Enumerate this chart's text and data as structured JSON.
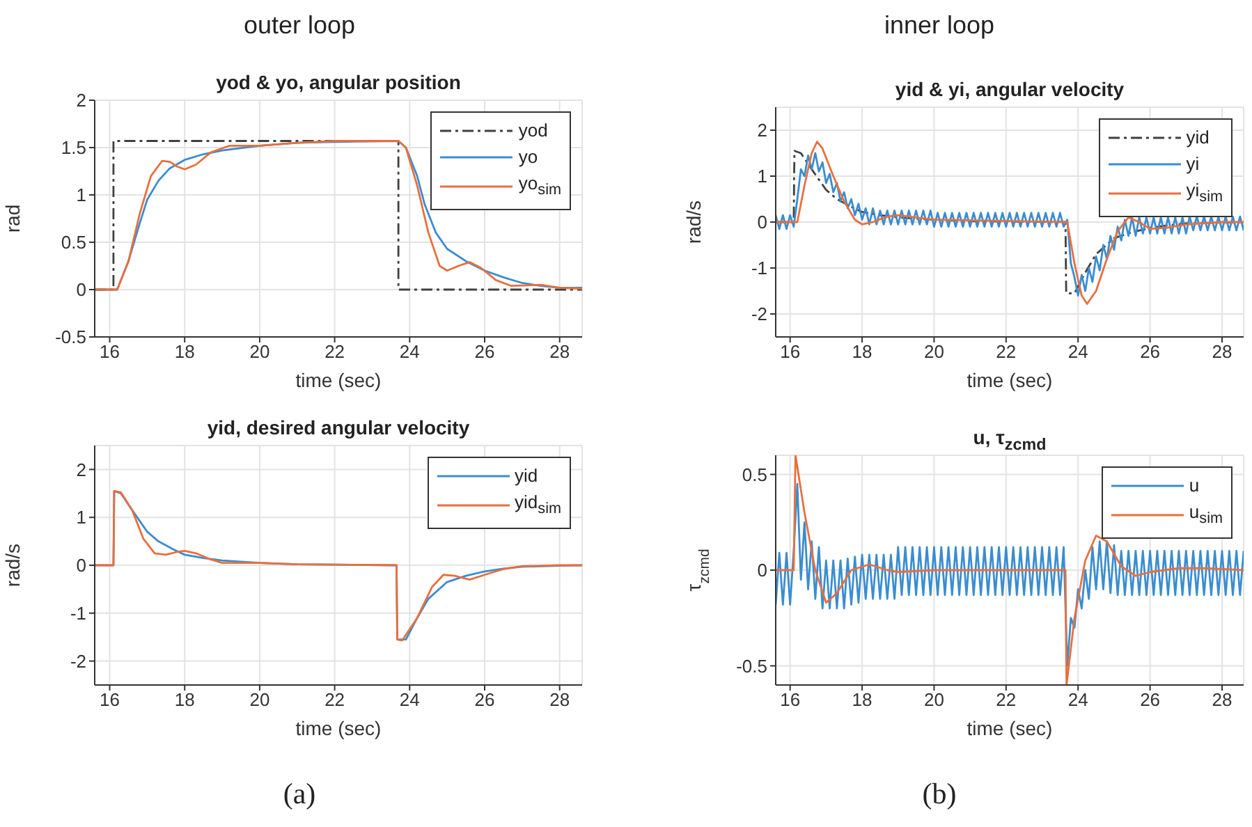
{
  "chart_data": [
    {
      "type": "line",
      "title": "yod & yo, angular position",
      "xlabel": "time (sec)",
      "ylabel": "rad",
      "annotations": [
        "outer loop"
      ],
      "xlim": [
        15.6,
        28.6
      ],
      "xticks": [
        16,
        18,
        20,
        22,
        24,
        26,
        28
      ],
      "ylim": [
        -0.5,
        2
      ],
      "yticks": [
        -0.5,
        0,
        0.5,
        1,
        1.5,
        2
      ],
      "grid": true,
      "legend": "top right",
      "series": [
        {
          "name": "yod",
          "color": "#404040",
          "line_style": "dashed",
          "x": [
            15.6,
            16.1,
            16.1,
            23.7,
            23.7,
            28.6
          ],
          "values": [
            0,
            0,
            1.57,
            1.57,
            0,
            0
          ]
        },
        {
          "name": "yo",
          "color": "#3a8dd0",
          "x": [
            15.6,
            16.2,
            16.5,
            16.8,
            17.0,
            17.3,
            17.6,
            18,
            18.5,
            19,
            20,
            21,
            22,
            23.7,
            23.9,
            24.2,
            24.4,
            24.7,
            25,
            25.5,
            26,
            26.5,
            27,
            27.5,
            28,
            28.6
          ],
          "values": [
            0,
            0,
            0.3,
            0.7,
            0.95,
            1.15,
            1.28,
            1.37,
            1.43,
            1.47,
            1.52,
            1.55,
            1.56,
            1.57,
            1.5,
            1.2,
            0.9,
            0.6,
            0.43,
            0.3,
            0.2,
            0.13,
            0.07,
            0.04,
            0.02,
            0.02
          ]
        },
        {
          "name": "yo$_{sim}$",
          "color": "#e86f3e",
          "x": [
            15.6,
            16.2,
            16.5,
            16.8,
            17.1,
            17.4,
            17.6,
            17.8,
            18,
            18.3,
            18.7,
            19.2,
            20,
            21,
            22,
            23.7,
            23.9,
            24.2,
            24.5,
            24.8,
            25,
            25.3,
            25.6,
            25.9,
            26.3,
            26.7,
            27.5,
            28,
            28.6
          ],
          "values": [
            0,
            0,
            0.3,
            0.8,
            1.2,
            1.36,
            1.35,
            1.3,
            1.27,
            1.32,
            1.45,
            1.52,
            1.52,
            1.55,
            1.57,
            1.57,
            1.5,
            1.1,
            0.6,
            0.25,
            0.2,
            0.25,
            0.29,
            0.23,
            0.1,
            0.04,
            0.05,
            0.02,
            0.01
          ]
        }
      ]
    },
    {
      "type": "line",
      "title": "yid & yi, angular velocity",
      "xlabel": "time (sec)",
      "ylabel": "rad/s",
      "annotations": [
        "inner loop"
      ],
      "xlim": [
        15.6,
        28.6
      ],
      "xticks": [
        16,
        18,
        20,
        22,
        24,
        26,
        28
      ],
      "ylim": [
        -2.5,
        2.5
      ],
      "yticks": [
        -2,
        -1,
        0,
        1,
        2
      ],
      "grid": true,
      "legend": "top right",
      "series": [
        {
          "name": "yid",
          "color": "#404040",
          "line_style": "dashed",
          "x": [
            15.6,
            16.1,
            16.12,
            16.3,
            16.6,
            17,
            17.3,
            17.7,
            18,
            18.5,
            19,
            20,
            21,
            23.65,
            23.67,
            23.9,
            24.2,
            24.5,
            25,
            25.5,
            26,
            26.5,
            27,
            28,
            28.6
          ],
          "values": [
            0,
            0,
            1.55,
            1.5,
            1.15,
            0.7,
            0.5,
            0.33,
            0.22,
            0.15,
            0.1,
            0.05,
            0.02,
            0,
            -1.55,
            -1.55,
            -1.1,
            -0.7,
            -0.35,
            -0.22,
            -0.13,
            -0.07,
            -0.03,
            -0.01,
            0
          ]
        },
        {
          "name": "yi",
          "color": "#3a8dd0",
          "x": [
            15.6,
            15.7,
            15.8,
            15.9,
            16.0,
            16.1,
            16.2,
            16.3,
            16.4,
            16.5,
            16.6,
            16.7,
            16.8,
            16.9,
            17.0,
            17.1,
            17.2,
            17.3,
            17.4,
            17.5,
            17.6,
            17.7,
            17.8,
            17.9,
            18.0,
            18.1,
            18.2,
            18.3,
            18.4,
            18.5,
            18.6,
            18.7,
            18.8,
            18.9,
            19.0,
            19.1,
            19.2,
            19.3,
            19.4,
            19.5,
            19.6,
            19.7,
            19.8,
            19.9,
            20.0,
            20.1,
            20.2,
            20.3,
            20.4,
            20.5,
            20.6,
            20.7,
            20.8,
            20.9,
            21.0,
            21.1,
            21.2,
            21.3,
            21.4,
            21.5,
            21.6,
            21.7,
            21.8,
            21.9,
            22.0,
            22.1,
            22.2,
            22.3,
            22.4,
            22.5,
            22.6,
            22.7,
            22.8,
            22.9,
            23.0,
            23.1,
            23.2,
            23.3,
            23.4,
            23.5,
            23.6,
            23.7,
            23.8,
            23.9,
            24.0,
            24.1,
            24.2,
            24.3,
            24.4,
            24.5,
            24.6,
            24.7,
            24.8,
            24.9,
            25.0,
            25.1,
            25.2,
            25.3,
            25.4,
            25.5,
            25.6,
            25.7,
            25.8,
            25.9,
            26.0,
            26.1,
            26.2,
            26.3,
            26.4,
            26.5,
            26.6,
            26.7,
            26.8,
            26.9,
            27.0,
            27.1,
            27.2,
            27.3,
            27.4,
            27.5,
            27.6,
            27.7,
            27.8,
            27.9,
            28.0,
            28.1,
            28.2,
            28.3,
            28.4,
            28.5,
            28.6
          ],
          "values": [
            0.15,
            -0.15,
            0.15,
            -0.15,
            0.15,
            -0.1,
            0.5,
            1.15,
            1.0,
            1.45,
            1.15,
            1.5,
            1.1,
            1.3,
            0.85,
            1.05,
            0.65,
            0.85,
            0.45,
            0.65,
            0.3,
            0.5,
            0.15,
            0.4,
            0.05,
            0.3,
            -0.05,
            0.3,
            -0.05,
            0.25,
            -0.05,
            0.25,
            -0.05,
            0.25,
            -0.05,
            0.25,
            -0.05,
            0.25,
            -0.05,
            0.25,
            -0.05,
            0.25,
            -0.05,
            0.25,
            -0.1,
            0.2,
            -0.1,
            0.2,
            -0.1,
            0.2,
            -0.1,
            0.2,
            -0.1,
            0.2,
            -0.1,
            0.2,
            -0.1,
            0.2,
            -0.1,
            0.2,
            -0.1,
            0.2,
            -0.1,
            0.2,
            -0.1,
            0.2,
            -0.1,
            0.2,
            -0.1,
            0.2,
            -0.1,
            0.2,
            -0.1,
            0.2,
            -0.1,
            0.2,
            -0.1,
            0.2,
            -0.1,
            0.2,
            -0.1,
            0.05,
            -0.9,
            -1.2,
            -1.6,
            -1.15,
            -1.5,
            -1.0,
            -1.3,
            -0.75,
            -1.05,
            -0.5,
            -0.8,
            -0.3,
            -0.6,
            -0.1,
            -0.4,
            0.05,
            -0.3,
            0.1,
            -0.3,
            0.1,
            -0.25,
            0.1,
            -0.25,
            0.1,
            -0.25,
            0.1,
            -0.25,
            0.1,
            -0.25,
            0.1,
            -0.25,
            0.1,
            -0.25,
            0.12,
            -0.18,
            0.12,
            -0.18,
            0.12,
            -0.18,
            0.12,
            -0.18,
            0.12,
            -0.18,
            0.12,
            -0.18,
            0.12,
            -0.18,
            0.12,
            -0.18
          ]
        },
        {
          "name": "yi$_{sim}$",
          "color": "#e86f3e",
          "x": [
            15.6,
            16.2,
            16.4,
            16.6,
            16.75,
            16.9,
            17.2,
            17.5,
            17.8,
            18,
            18.3,
            18.7,
            19,
            19.5,
            20,
            23.7,
            23.9,
            24.1,
            24.25,
            24.5,
            24.8,
            25.1,
            25.4,
            25.7,
            26,
            26.5,
            27,
            28,
            28.6
          ],
          "values": [
            0,
            0,
            0.8,
            1.5,
            1.75,
            1.6,
            1.0,
            0.45,
            0.05,
            -0.05,
            0,
            0.12,
            0.15,
            0.1,
            0.05,
            0,
            -0.9,
            -1.6,
            -1.78,
            -1.5,
            -0.8,
            -0.2,
            0.1,
            0,
            -0.15,
            -0.12,
            -0.05,
            0,
            0
          ]
        }
      ]
    },
    {
      "type": "line",
      "title": "yid, desired angular velocity",
      "xlabel": "time (sec)",
      "ylabel": "rad/s",
      "annotations": [
        "(a)"
      ],
      "xlim": [
        15.6,
        28.6
      ],
      "xticks": [
        16,
        18,
        20,
        22,
        24,
        26,
        28
      ],
      "ylim": [
        -2.5,
        2.5
      ],
      "yticks": [
        -2,
        -1,
        0,
        1,
        2
      ],
      "grid": true,
      "legend": "top right",
      "series": [
        {
          "name": "yid",
          "color": "#3a8dd0",
          "x": [
            15.6,
            16.1,
            16.12,
            16.3,
            16.6,
            17,
            17.3,
            17.7,
            18,
            18.5,
            19,
            20,
            21,
            23.65,
            23.67,
            23.9,
            24.2,
            24.5,
            25,
            25.5,
            26,
            26.5,
            27,
            28,
            28.6
          ],
          "values": [
            0,
            0,
            1.55,
            1.5,
            1.15,
            0.7,
            0.5,
            0.33,
            0.22,
            0.15,
            0.1,
            0.05,
            0.02,
            0,
            -1.55,
            -1.55,
            -1.1,
            -0.7,
            -0.35,
            -0.22,
            -0.13,
            -0.07,
            -0.03,
            -0.01,
            0
          ]
        },
        {
          "name": "yid$_{sim}$",
          "color": "#e86f3e",
          "x": [
            15.6,
            16.1,
            16.12,
            16.3,
            16.6,
            16.9,
            17.2,
            17.5,
            17.8,
            18,
            18.3,
            18.7,
            19,
            20,
            21,
            23.65,
            23.67,
            23.8,
            24.2,
            24.6,
            24.9,
            25.2,
            25.6,
            26,
            26.5,
            27,
            28,
            28.6
          ],
          "values": [
            0,
            0,
            1.55,
            1.52,
            1.15,
            0.55,
            0.25,
            0.22,
            0.28,
            0.3,
            0.25,
            0.12,
            0.05,
            0.05,
            0.02,
            0,
            -1.55,
            -1.57,
            -1.1,
            -0.45,
            -0.2,
            -0.22,
            -0.3,
            -0.2,
            -0.08,
            -0.02,
            0,
            0
          ]
        }
      ]
    },
    {
      "type": "line",
      "title": "u, τ$_{zcmd}$",
      "xlabel": "time (sec)",
      "ylabel": "τ$_{zcmd}$",
      "annotations": [
        "(b)"
      ],
      "xlim": [
        15.6,
        28.6
      ],
      "xticks": [
        16,
        18,
        20,
        22,
        24,
        26,
        28
      ],
      "ylim": [
        -0.6,
        0.6
      ],
      "yticks": [
        -0.5,
        0,
        0.5
      ],
      "grid": true,
      "legend": "top right",
      "series": [
        {
          "name": "u",
          "color": "#3a8dd0",
          "x": [
            15.6,
            15.7,
            15.8,
            15.9,
            16.0,
            16.1,
            16.2,
            16.3,
            16.4,
            16.5,
            16.6,
            16.7,
            16.8,
            16.9,
            17.0,
            17.1,
            17.2,
            17.3,
            17.4,
            17.5,
            17.6,
            17.7,
            17.8,
            17.9,
            18.0,
            18.1,
            18.2,
            18.3,
            18.4,
            18.5,
            18.6,
            18.7,
            18.8,
            18.9,
            19.0,
            19.1,
            19.2,
            19.3,
            19.4,
            19.5,
            19.6,
            19.7,
            19.8,
            19.9,
            20.0,
            20.1,
            20.2,
            20.3,
            20.4,
            20.5,
            20.6,
            20.7,
            20.8,
            20.9,
            21.0,
            21.1,
            21.2,
            21.3,
            21.4,
            21.5,
            21.6,
            21.7,
            21.8,
            21.9,
            22.0,
            22.1,
            22.2,
            22.3,
            22.4,
            22.5,
            22.6,
            22.7,
            22.8,
            22.9,
            23.0,
            23.1,
            23.2,
            23.3,
            23.4,
            23.5,
            23.6,
            23.7,
            23.8,
            23.9,
            24.0,
            24.1,
            24.2,
            24.3,
            24.4,
            24.5,
            24.6,
            24.7,
            24.8,
            24.9,
            25.0,
            25.1,
            25.2,
            25.3,
            25.4,
            25.5,
            25.6,
            25.7,
            25.8,
            25.9,
            26.0,
            26.1,
            26.2,
            26.3,
            26.4,
            26.5,
            26.6,
            26.7,
            26.8,
            26.9,
            27.0,
            27.1,
            27.2,
            27.3,
            27.4,
            27.5,
            27.6,
            27.7,
            27.8,
            27.9,
            28.0,
            28.1,
            28.2,
            28.3,
            28.4,
            28.5,
            28.6
          ],
          "values": [
            -0.18,
            0.09,
            -0.18,
            0.09,
            -0.18,
            0.1,
            0.45,
            -0.05,
            0.25,
            -0.1,
            0.15,
            -0.15,
            0.12,
            -0.2,
            0.05,
            -0.2,
            0.05,
            -0.2,
            0.05,
            -0.2,
            0.06,
            -0.18,
            0.07,
            -0.17,
            0.08,
            -0.15,
            0.08,
            -0.15,
            0.08,
            -0.15,
            0.08,
            -0.15,
            0.08,
            -0.15,
            0.12,
            -0.13,
            0.12,
            -0.13,
            0.12,
            -0.13,
            0.12,
            -0.13,
            0.12,
            -0.13,
            0.12,
            -0.13,
            0.12,
            -0.13,
            0.12,
            -0.13,
            0.12,
            -0.13,
            0.12,
            -0.13,
            0.12,
            -0.13,
            0.12,
            -0.13,
            0.12,
            -0.13,
            0.12,
            -0.13,
            0.12,
            -0.13,
            0.12,
            -0.13,
            0.12,
            -0.13,
            0.12,
            -0.13,
            0.12,
            -0.13,
            0.12,
            -0.13,
            0.12,
            -0.13,
            0.12,
            -0.13,
            0.12,
            -0.13,
            0.12,
            -0.5,
            -0.25,
            -0.3,
            -0.1,
            -0.2,
            0,
            -0.15,
            0.12,
            -0.1,
            0.15,
            -0.1,
            0.15,
            -0.12,
            0.13,
            -0.13,
            0.1,
            -0.13,
            0.1,
            -0.13,
            0.1,
            -0.13,
            0.1,
            -0.13,
            0.1,
            -0.13,
            0.1,
            -0.13,
            0.1,
            -0.13,
            0.1,
            -0.13,
            0.1,
            -0.13,
            0.1,
            -0.13,
            0.1,
            -0.13,
            0.1,
            -0.13,
            0.1,
            -0.13,
            0.1,
            -0.13,
            0.1,
            -0.13,
            0.1,
            -0.13,
            0.1,
            -0.13,
            0.1
          ]
        },
        {
          "name": "u$_{sim}$",
          "color": "#e86f3e",
          "x": [
            15.6,
            16.1,
            16.15,
            16.4,
            16.7,
            17,
            17.3,
            17.7,
            18.2,
            18.7,
            19,
            20,
            23.65,
            23.68,
            23.9,
            24.2,
            24.5,
            24.8,
            25.2,
            25.6,
            26,
            26.8,
            27.5,
            28.6
          ],
          "values": [
            0,
            0,
            0.6,
            0.3,
            0,
            -0.17,
            -0.12,
            0,
            0.03,
            0,
            -0.01,
            0,
            0,
            -0.6,
            -0.25,
            0.05,
            0.18,
            0.15,
            0.02,
            -0.03,
            -0.01,
            0.01,
            0.01,
            0
          ]
        }
      ]
    }
  ]
}
